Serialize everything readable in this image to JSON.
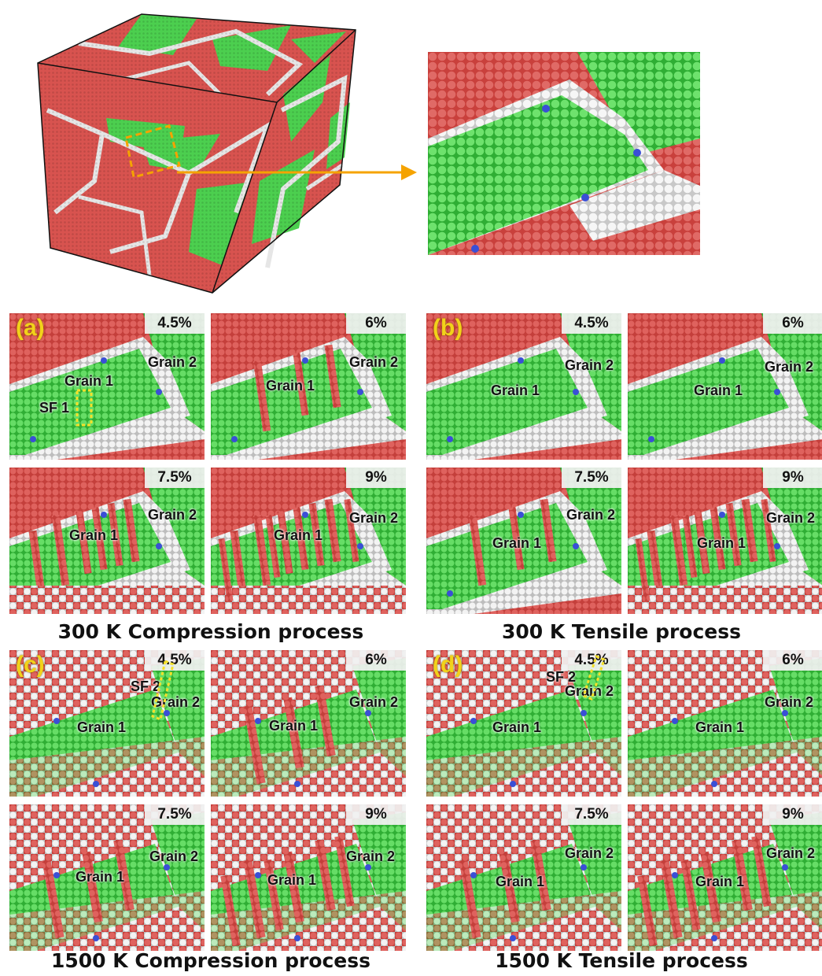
{
  "colors": {
    "fcc": "#d8534f",
    "hcp": "#4ccf4f",
    "other": "#ececec",
    "bcc": "#3a4fd6",
    "arrow": "#f5a300",
    "highlight": "#f5e12a"
  },
  "figure": {
    "overview_panel_labels": [
      "(a)",
      "(b)",
      "(c)",
      "(d)"
    ],
    "groups": [
      {
        "tag": "(a)",
        "caption": "300 K Compression process",
        "panels": [
          {
            "strain": "4.5%",
            "labels": [
              "Grain 1",
              "Grain 2",
              "SF 1"
            ]
          },
          {
            "strain": "6%",
            "labels": [
              "Grain 1",
              "Grain 2"
            ]
          },
          {
            "strain": "7.5%",
            "labels": [
              "Grain 1",
              "Grain 2"
            ]
          },
          {
            "strain": "9%",
            "labels": [
              "Grain 1",
              "Grain 2"
            ]
          }
        ]
      },
      {
        "tag": "(b)",
        "caption": "300 K Tensile process",
        "panels": [
          {
            "strain": "4.5%",
            "labels": [
              "Grain 1",
              "Grain 2"
            ]
          },
          {
            "strain": "6%",
            "labels": [
              "Grain 1",
              "Grain 2"
            ]
          },
          {
            "strain": "7.5%",
            "labels": [
              "Grain 1",
              "Grain 2"
            ]
          },
          {
            "strain": "9%",
            "labels": [
              "Grain 1",
              "Grain 2"
            ]
          }
        ]
      },
      {
        "tag": "(c)",
        "caption": "1500 K Compression process",
        "panels": [
          {
            "strain": "4.5%",
            "labels": [
              "Grain 1",
              "Grain 2",
              "SF 2"
            ]
          },
          {
            "strain": "6%",
            "labels": [
              "Grain 1",
              "Grain 2"
            ]
          },
          {
            "strain": "7.5%",
            "labels": [
              "Grain 1",
              "Grain 2"
            ]
          },
          {
            "strain": "9%",
            "labels": [
              "Grain 1",
              "Grain 2"
            ]
          }
        ]
      },
      {
        "tag": "(d)",
        "caption": "1500 K Tensile process",
        "panels": [
          {
            "strain": "4.5%",
            "labels": [
              "Grain 1",
              "Grain 2",
              "SF 2"
            ]
          },
          {
            "strain": "6%",
            "labels": [
              "Grain 1",
              "Grain 2"
            ]
          },
          {
            "strain": "7.5%",
            "labels": [
              "Grain 1",
              "Grain 2"
            ]
          },
          {
            "strain": "9%",
            "labels": [
              "Grain 1",
              "Grain 2"
            ]
          }
        ]
      }
    ]
  }
}
